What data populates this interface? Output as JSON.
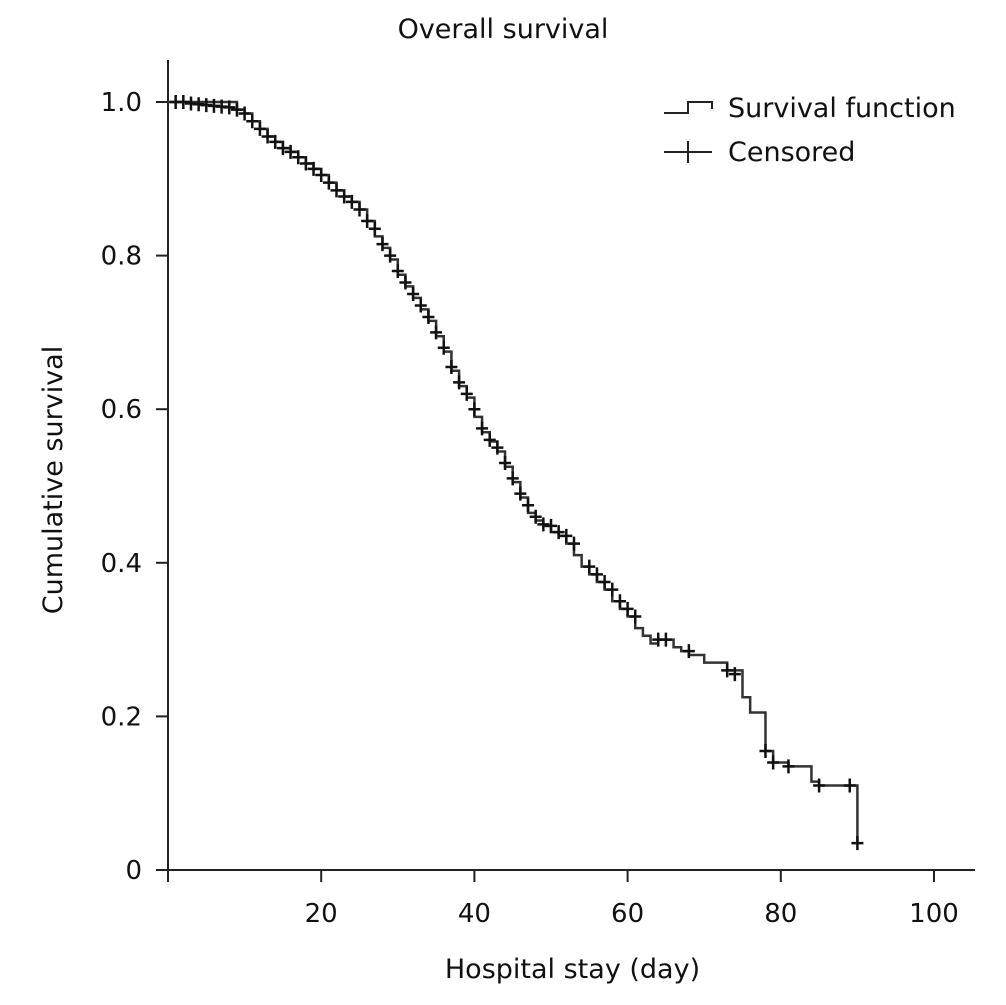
{
  "chart_data": {
    "type": "line",
    "title": "Overall survival",
    "xlabel": "Hospital stay (day)",
    "ylabel": "Cumulative survival",
    "xlim": [
      0,
      105
    ],
    "ylim": [
      0,
      1.05
    ],
    "xticks": [
      20,
      40,
      60,
      80,
      100
    ],
    "yticks": [
      0,
      0.2,
      0.4,
      0.6,
      0.8,
      1.0
    ],
    "ytick_labels": [
      "0",
      "0.2",
      "0.4",
      "0.6",
      "0.8",
      "1.0"
    ],
    "grid": false,
    "legend_position": "top-right",
    "legend": [
      {
        "label": "Survival function",
        "symbol": "step"
      },
      {
        "label": "Censored",
        "symbol": "cross"
      }
    ],
    "series": [
      {
        "name": "Survival function",
        "kind": "step",
        "x": [
          0,
          9,
          10,
          11,
          12,
          13,
          14,
          15,
          16,
          17,
          18,
          19,
          20,
          21,
          22,
          23,
          24,
          25,
          26,
          27,
          28,
          29,
          30,
          31,
          32,
          33,
          34,
          35,
          36,
          37,
          38,
          39,
          40,
          41,
          42,
          43,
          44,
          45,
          46,
          47,
          48,
          49,
          50,
          51,
          52,
          53,
          54,
          55,
          56,
          57,
          58,
          59,
          60,
          61,
          62,
          63,
          64,
          66,
          67,
          68,
          70,
          73,
          75,
          76,
          78,
          79,
          81,
          84,
          85,
          89,
          90
        ],
        "y": [
          1.0,
          0.99,
          0.985,
          0.975,
          0.965,
          0.955,
          0.948,
          0.94,
          0.935,
          0.928,
          0.92,
          0.913,
          0.905,
          0.895,
          0.885,
          0.877,
          0.87,
          0.86,
          0.845,
          0.825,
          0.81,
          0.795,
          0.775,
          0.76,
          0.745,
          0.73,
          0.715,
          0.695,
          0.675,
          0.65,
          0.63,
          0.615,
          0.59,
          0.57,
          0.558,
          0.545,
          0.525,
          0.505,
          0.485,
          0.465,
          0.455,
          0.448,
          0.44,
          0.435,
          0.425,
          0.41,
          0.395,
          0.385,
          0.375,
          0.365,
          0.35,
          0.34,
          0.33,
          0.315,
          0.305,
          0.295,
          0.3,
          0.29,
          0.285,
          0.28,
          0.27,
          0.26,
          0.225,
          0.205,
          0.155,
          0.14,
          0.135,
          0.115,
          0.11,
          0.11,
          0.035
        ]
      },
      {
        "name": "Censored",
        "kind": "scatter",
        "x": [
          1,
          2,
          3,
          4,
          5,
          6,
          7,
          8,
          9,
          10,
          11,
          12,
          13,
          14,
          15,
          16,
          17,
          18,
          19,
          20,
          21,
          22,
          23,
          24,
          25,
          26,
          27,
          28,
          29,
          30,
          31,
          32,
          33,
          34,
          35,
          36,
          37,
          38,
          39,
          40,
          41,
          42,
          43,
          44,
          45,
          46,
          47,
          48,
          49,
          50,
          51,
          52,
          53,
          55,
          56,
          57,
          58,
          59,
          60,
          61,
          64,
          65,
          68,
          73,
          74,
          78,
          79,
          81,
          85,
          89,
          90
        ],
        "y": [
          1.0,
          1.0,
          0.998,
          0.997,
          0.996,
          0.995,
          0.994,
          0.993,
          0.99,
          0.985,
          0.975,
          0.965,
          0.955,
          0.948,
          0.94,
          0.935,
          0.928,
          0.92,
          0.913,
          0.905,
          0.895,
          0.885,
          0.877,
          0.87,
          0.86,
          0.845,
          0.835,
          0.815,
          0.8,
          0.78,
          0.765,
          0.75,
          0.735,
          0.72,
          0.7,
          0.68,
          0.655,
          0.635,
          0.62,
          0.6,
          0.575,
          0.56,
          0.55,
          0.53,
          0.51,
          0.49,
          0.475,
          0.46,
          0.45,
          0.448,
          0.44,
          0.435,
          0.425,
          0.395,
          0.385,
          0.375,
          0.365,
          0.35,
          0.34,
          0.33,
          0.3,
          0.3,
          0.285,
          0.26,
          0.255,
          0.155,
          0.14,
          0.135,
          0.11,
          0.11,
          0.035
        ]
      }
    ]
  }
}
